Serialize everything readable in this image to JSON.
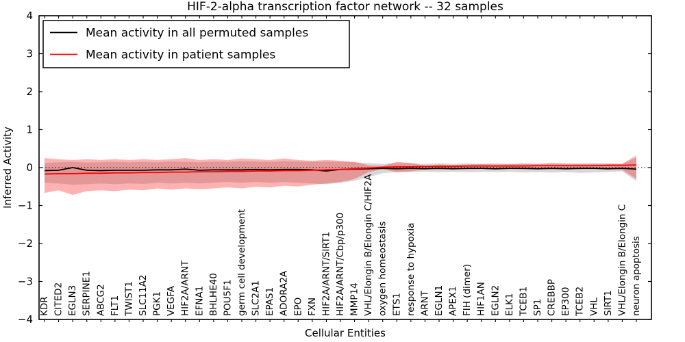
{
  "figure": {
    "title": "HIF-2-alpha transcription factor network -- 32 samples",
    "xlabel": "Cellular Entities",
    "ylabel": "Inferred Activity"
  },
  "legend": {
    "items": [
      {
        "label": "Mean activity in all permuted samples",
        "color": "#000000"
      },
      {
        "label": "Mean activity in patient samples",
        "color": "#ff0000"
      }
    ]
  },
  "chart_data": {
    "type": "line",
    "title": "HIF-2-alpha transcription factor network -- 32 samples",
    "xlabel": "Cellular Entities",
    "ylabel": "Inferred Activity",
    "ylim": [
      -4,
      4
    ],
    "yticks": [
      4,
      3,
      2,
      1,
      0,
      -1,
      -2,
      -3,
      -4
    ],
    "ytick_labels": [
      "4",
      "3",
      "2",
      "1",
      "0",
      "−1",
      "−2",
      "−3",
      "−4"
    ],
    "grid": false,
    "zero_line": "dotted",
    "legend_position": "upper left",
    "categories": [
      "KDR",
      "CITED2",
      "EGLN3",
      "SERPINE1",
      "ABCG2",
      "FLT1",
      "TWIST1",
      "SLC11A2",
      "PGK1",
      "VEGFA",
      "HIF2A/ARNT",
      "EFNA1",
      "BHLHE40",
      "POU5F1",
      "germ cell development",
      "SLC2A1",
      "EPAS1",
      "ADORA2A",
      "EPO",
      "FXN",
      "HIF2A/ARNT/SIRT1",
      "HIF2A/ARNT/Cbp/p300",
      "MMP14",
      "VHL/Elongin B/Elongin C/HIF2A",
      "oxygen homeostasis",
      "ETS1",
      "response to hypoxia",
      "ARNT",
      "EGLN1",
      "APEX1",
      "FIH (dimer)",
      "HIF1AN",
      "EGLN2",
      "ELK1",
      "TCEB1",
      "SP1",
      "CREBBP",
      "EP300",
      "TCEB2",
      "VHL",
      "SIRT1",
      "VHL/Elongin B/Elongin C",
      "neuron apoptosis"
    ],
    "series": [
      {
        "name": "Permuted samples std band",
        "type": "band",
        "color": "#7f7f7f",
        "opacity": 0.3,
        "upper": [
          0.12,
          0.14,
          0.15,
          0.13,
          0.14,
          0.15,
          0.14,
          0.15,
          0.14,
          0.16,
          0.15,
          0.14,
          0.16,
          0.15,
          0.17,
          0.16,
          0.15,
          0.17,
          0.16,
          0.15,
          0.16,
          0.15,
          0.14,
          0.12,
          0.1,
          0.12,
          0.11,
          0.1,
          0.11,
          0.1,
          0.11,
          0.1,
          0.11,
          0.1,
          0.11,
          0.1,
          0.12,
          0.11,
          0.12,
          0.11,
          0.12,
          0.1,
          0.26
        ],
        "lower": [
          -0.4,
          -0.42,
          -0.45,
          -0.44,
          -0.42,
          -0.44,
          -0.42,
          -0.43,
          -0.4,
          -0.42,
          -0.4,
          -0.42,
          -0.4,
          -0.38,
          -0.4,
          -0.38,
          -0.4,
          -0.38,
          -0.4,
          -0.42,
          -0.44,
          -0.4,
          -0.35,
          -0.25,
          -0.15,
          -0.12,
          -0.12,
          -0.11,
          -0.12,
          -0.11,
          -0.12,
          -0.11,
          -0.12,
          -0.11,
          -0.13,
          -0.12,
          -0.13,
          -0.12,
          -0.14,
          -0.13,
          -0.12,
          -0.1,
          -0.36
        ]
      },
      {
        "name": "Patient samples std band",
        "type": "band",
        "color": "#ff0000",
        "opacity": 0.3,
        "upper": [
          0.25,
          0.22,
          0.2,
          0.22,
          0.2,
          0.22,
          0.2,
          0.22,
          0.2,
          0.22,
          0.25,
          0.2,
          0.22,
          0.2,
          0.24,
          0.22,
          0.2,
          0.24,
          0.2,
          0.18,
          0.2,
          0.18,
          0.15,
          0.06,
          0.04,
          0.15,
          0.12,
          0.05,
          0.08,
          0.07,
          0.08,
          0.09,
          0.08,
          0.09,
          0.1,
          0.09,
          0.11,
          0.1,
          0.09,
          0.1,
          0.09,
          0.1,
          0.32
        ],
        "lower": [
          -0.67,
          -0.6,
          -0.72,
          -0.62,
          -0.6,
          -0.62,
          -0.58,
          -0.6,
          -0.55,
          -0.58,
          -0.55,
          -0.57,
          -0.55,
          -0.52,
          -0.55,
          -0.5,
          -0.52,
          -0.48,
          -0.5,
          -0.45,
          -0.42,
          -0.38,
          -0.3,
          -0.12,
          -0.04,
          -0.12,
          -0.1,
          -0.04,
          -0.05,
          -0.04,
          -0.05,
          -0.04,
          -0.05,
          -0.04,
          -0.05,
          -0.04,
          -0.05,
          -0.04,
          -0.05,
          -0.04,
          -0.05,
          -0.06,
          -0.3
        ]
      },
      {
        "name": "Mean activity in all permuted samples",
        "type": "line",
        "color": "#000000",
        "values": [
          -0.08,
          -0.07,
          0.0,
          -0.07,
          -0.08,
          -0.07,
          -0.07,
          -0.07,
          -0.06,
          -0.06,
          -0.04,
          -0.07,
          -0.06,
          -0.06,
          -0.06,
          -0.05,
          -0.06,
          -0.05,
          -0.05,
          -0.06,
          -0.09,
          -0.05,
          -0.04,
          -0.03,
          -0.02,
          -0.03,
          -0.02,
          -0.03,
          -0.02,
          -0.03,
          -0.02,
          -0.02,
          -0.03,
          -0.02,
          -0.02,
          -0.03,
          -0.02,
          -0.03,
          -0.02,
          -0.02,
          -0.03,
          -0.02,
          -0.04
        ]
      },
      {
        "name": "Mean activity in patient samples",
        "type": "line",
        "color": "#ff0000",
        "values": [
          -0.17,
          -0.16,
          -0.16,
          -0.15,
          -0.15,
          -0.14,
          -0.14,
          -0.13,
          -0.13,
          -0.12,
          -0.12,
          -0.11,
          -0.11,
          -0.1,
          -0.1,
          -0.09,
          -0.09,
          -0.08,
          -0.08,
          -0.07,
          -0.06,
          -0.05,
          -0.03,
          -0.01,
          0.01,
          0.02,
          0.02,
          0.03,
          0.03,
          0.03,
          0.04,
          0.04,
          0.04,
          0.04,
          0.04,
          0.05,
          0.05,
          0.05,
          0.05,
          0.05,
          0.06,
          0.06,
          0.07
        ]
      }
    ]
  }
}
